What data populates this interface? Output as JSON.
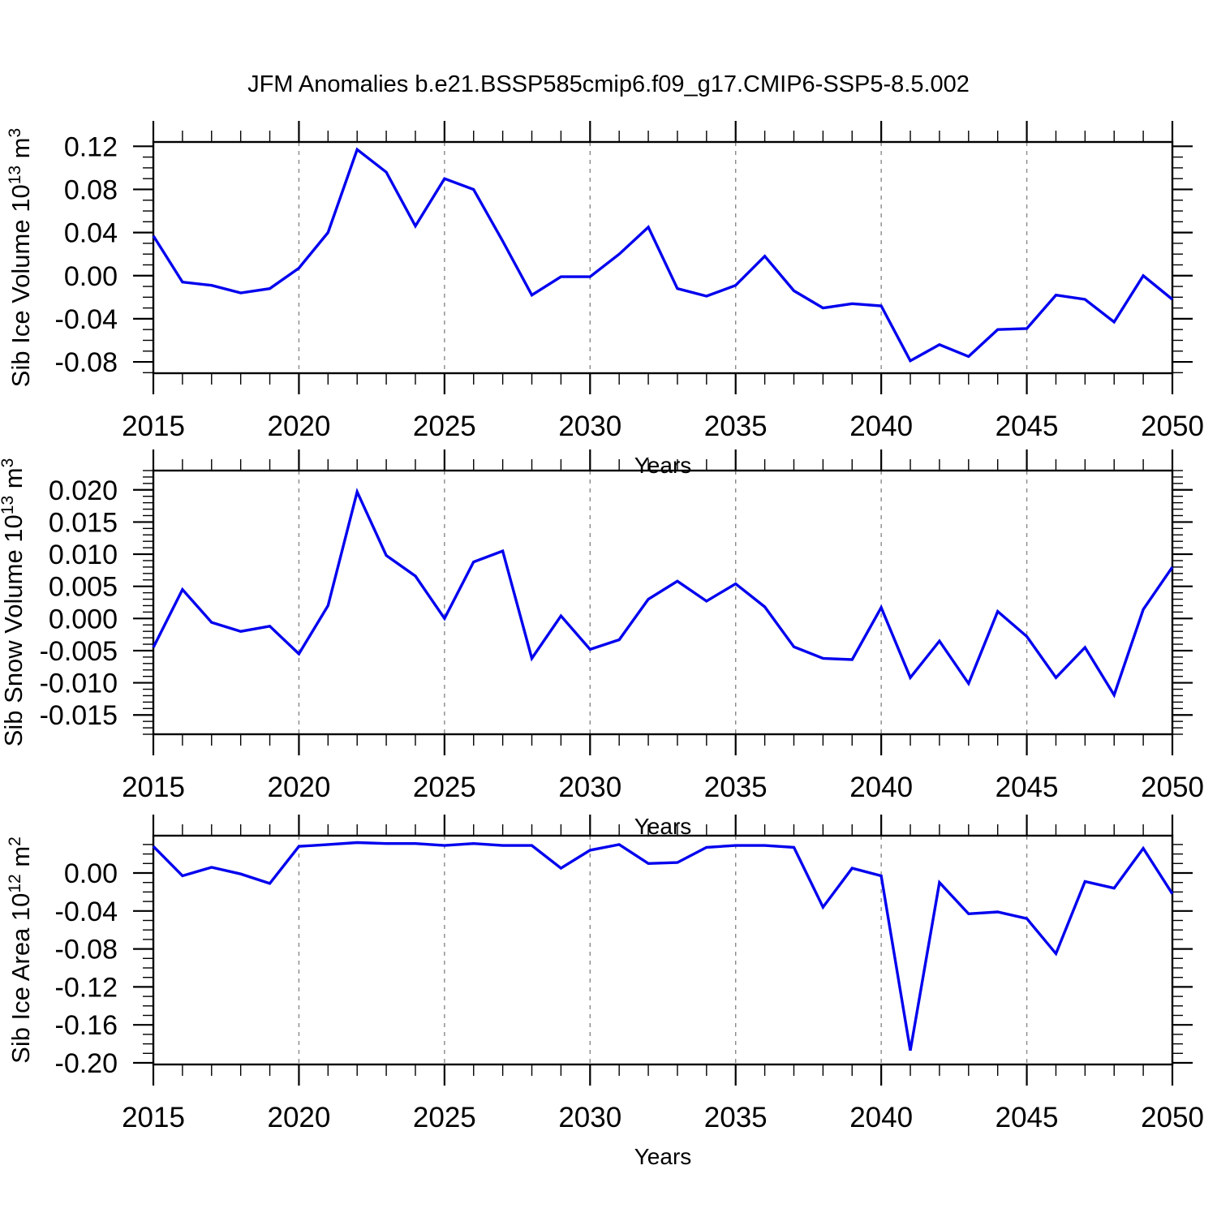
{
  "title": "JFM Anomalies b.e21.BSSP585cmip6.f09_g17.CMIP6-SSP5-8.5.002",
  "colors": {
    "line": "#0000EE",
    "grid": "#8a8a8a",
    "axis": "#000000",
    "background": "#ffffff"
  },
  "chart_data": [
    {
      "type": "line",
      "name": "sib-ice-volume",
      "ylabel": "Sib Ice Volume 10^13 m^3",
      "xlabel": "Years",
      "xlim": [
        2015,
        2050
      ],
      "ylim": [
        -0.0905,
        0.124
      ],
      "xticks": [
        2015,
        2020,
        2025,
        2030,
        2035,
        2040,
        2045,
        2050
      ],
      "grid_x": [
        2020,
        2025,
        2030,
        2035,
        2040,
        2045
      ],
      "x_minor_step": 1,
      "y_minor_step": 0.01,
      "ytick_vals": [
        0.12,
        0.08,
        0.04,
        0.0,
        -0.04,
        -0.08
      ],
      "ytick_labels": [
        "0.12",
        "0.08",
        "0.04",
        "0.00",
        "-0.04",
        "-0.08"
      ],
      "x": [
        2015,
        2016,
        2017,
        2018,
        2019,
        2020,
        2021,
        2022,
        2023,
        2024,
        2025,
        2026,
        2027,
        2028,
        2029,
        2030,
        2031,
        2032,
        2033,
        2034,
        2035,
        2036,
        2037,
        2038,
        2039,
        2040,
        2041,
        2042,
        2043,
        2044,
        2045,
        2046,
        2047,
        2048,
        2049,
        2050
      ],
      "values": [
        0.037,
        -0.006,
        -0.009,
        -0.016,
        -0.012,
        0.007,
        0.04,
        0.117,
        0.096,
        0.046,
        0.09,
        0.08,
        0.032,
        -0.018,
        -0.001,
        -0.001,
        0.02,
        0.045,
        -0.012,
        -0.019,
        -0.009,
        0.018,
        -0.014,
        -0.03,
        -0.026,
        -0.028,
        -0.079,
        -0.064,
        -0.075,
        -0.05,
        -0.049,
        -0.018,
        -0.022,
        -0.043,
        0.0,
        -0.022
      ],
      "line_color": "#0000EE"
    },
    {
      "type": "line",
      "name": "sib-snow-volume",
      "ylabel": "Sib Snow Volume 10^13 m^3",
      "xlabel": "Years",
      "xlim": [
        2015,
        2050
      ],
      "ylim": [
        -0.018,
        0.023
      ],
      "xticks": [
        2015,
        2020,
        2025,
        2030,
        2035,
        2040,
        2045,
        2050
      ],
      "grid_x": [
        2020,
        2025,
        2030,
        2035,
        2040,
        2045
      ],
      "x_minor_step": 1,
      "y_minor_step": 0.001,
      "ytick_vals": [
        0.02,
        0.015,
        0.01,
        0.005,
        0.0,
        -0.005,
        -0.01,
        -0.015
      ],
      "ytick_labels": [
        "0.020",
        "0.015",
        "0.010",
        "0.005",
        "0.000",
        "-0.005",
        "-0.010",
        "-0.015"
      ],
      "x": [
        2015,
        2016,
        2017,
        2018,
        2019,
        2020,
        2021,
        2022,
        2023,
        2024,
        2025,
        2026,
        2027,
        2028,
        2029,
        2030,
        2031,
        2032,
        2033,
        2034,
        2035,
        2036,
        2037,
        2038,
        2039,
        2040,
        2041,
        2042,
        2043,
        2044,
        2045,
        2046,
        2047,
        2048,
        2049,
        2050
      ],
      "values": [
        -0.0045,
        0.0045,
        -0.0006,
        -0.002,
        -0.0012,
        -0.0055,
        0.002,
        0.0197,
        0.0098,
        0.0066,
        0.0,
        0.0088,
        0.0105,
        -0.0062,
        0.0004,
        -0.0048,
        -0.0033,
        0.003,
        0.0058,
        0.0027,
        0.0054,
        0.0018,
        -0.0044,
        -0.0062,
        -0.0064,
        0.0017,
        -0.0092,
        -0.0035,
        -0.0101,
        0.0011,
        -0.0028,
        -0.0092,
        -0.0045,
        -0.0119,
        0.0014,
        0.008
      ],
      "line_color": "#0000EE"
    },
    {
      "type": "line",
      "name": "sib-ice-area",
      "ylabel": "Sib Ice Area 10^12 m^2",
      "xlabel": "Years",
      "xlim": [
        2015,
        2050
      ],
      "ylim": [
        -0.2017,
        0.0393
      ],
      "xticks": [
        2015,
        2020,
        2025,
        2030,
        2035,
        2040,
        2045,
        2050
      ],
      "grid_x": [
        2020,
        2025,
        2030,
        2035,
        2040,
        2045
      ],
      "x_minor_step": 1,
      "y_minor_step": 0.01,
      "ytick_vals": [
        0.0,
        -0.04,
        -0.08,
        -0.12,
        -0.16,
        -0.2
      ],
      "ytick_labels": [
        "0.00",
        "-0.04",
        "-0.08",
        "-0.12",
        "-0.16",
        "-0.20"
      ],
      "x": [
        2015,
        2016,
        2017,
        2018,
        2019,
        2020,
        2021,
        2022,
        2023,
        2024,
        2025,
        2026,
        2027,
        2028,
        2029,
        2030,
        2031,
        2032,
        2033,
        2034,
        2035,
        2036,
        2037,
        2038,
        2039,
        2040,
        2041,
        2042,
        2043,
        2044,
        2045,
        2046,
        2047,
        2048,
        2049,
        2050
      ],
      "values": [
        0.028,
        -0.003,
        0.006,
        -0.001,
        -0.011,
        0.028,
        0.03,
        0.032,
        0.031,
        0.031,
        0.029,
        0.031,
        0.029,
        0.029,
        0.005,
        0.024,
        0.03,
        0.01,
        0.011,
        0.027,
        0.029,
        0.029,
        0.027,
        -0.036,
        0.005,
        -0.003,
        -0.187,
        -0.01,
        -0.043,
        -0.041,
        -0.048,
        -0.085,
        -0.009,
        -0.016,
        0.026,
        -0.022
      ],
      "line_color": "#0000EE"
    }
  ]
}
